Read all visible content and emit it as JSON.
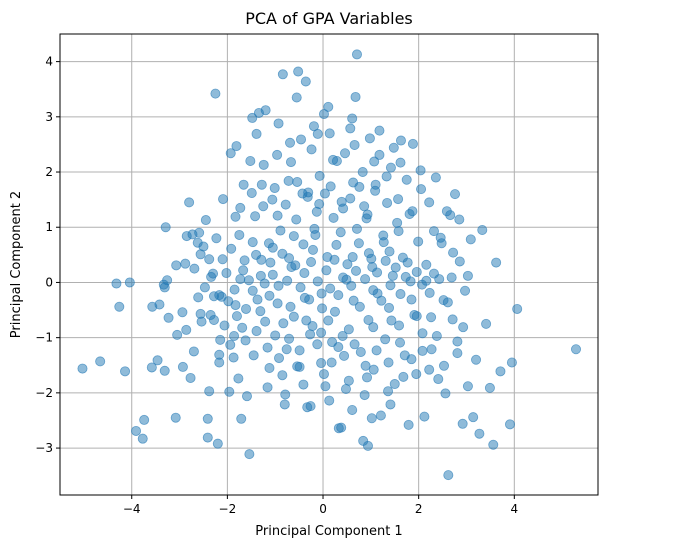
{
  "chart_data": {
    "type": "scatter",
    "title": "PCA of GPA Variables",
    "xlabel": "Principal Component 1",
    "ylabel": "Principal Component 2",
    "xlim": [
      -5.5,
      5.75
    ],
    "ylim": [
      -3.85,
      4.5
    ],
    "xticks": [
      -4,
      -2,
      0,
      2,
      4
    ],
    "yticks": [
      -3,
      -2,
      -1,
      0,
      1,
      2,
      3,
      4
    ],
    "xtick_labels": [
      "−4",
      "−2",
      "0",
      "2",
      "4"
    ],
    "ytick_labels": [
      "−3",
      "−2",
      "−1",
      "0",
      "1",
      "2",
      "3",
      "4"
    ],
    "grid": true,
    "legend": "none",
    "marker_color": "#1f77b4",
    "marker_alpha": 0.5,
    "points": [
      [
        -5.03,
        -1.56
      ],
      [
        -4.66,
        -1.43
      ],
      [
        -4.14,
        -1.61
      ],
      [
        -4.32,
        -0.02
      ],
      [
        -4.26,
        -0.44
      ],
      [
        -4.04,
        0.0
      ],
      [
        -3.91,
        -2.69
      ],
      [
        -3.77,
        -2.83
      ],
      [
        -3.74,
        -2.49
      ],
      [
        -3.58,
        -1.54
      ],
      [
        -3.57,
        -0.44
      ],
      [
        -3.42,
        -0.4
      ],
      [
        -3.31,
        -1.6
      ],
      [
        -3.31,
        -0.09
      ],
      [
        -3.33,
        -0.04
      ],
      [
        -3.23,
        -0.64
      ],
      [
        -3.29,
        1.0
      ],
      [
        -3.26,
        0.04
      ],
      [
        -3.08,
        -2.45
      ],
      [
        -3.07,
        0.31
      ],
      [
        -2.94,
        -0.54
      ],
      [
        -2.93,
        -1.53
      ],
      [
        -2.85,
        0.84
      ],
      [
        -2.8,
        1.45
      ],
      [
        -2.77,
        -1.73
      ],
      [
        -2.69,
        0.25
      ],
      [
        -2.61,
        -0.27
      ],
      [
        -2.59,
        0.9
      ],
      [
        -2.56,
        -0.57
      ],
      [
        -2.5,
        0.65
      ],
      [
        -2.41,
        -2.81
      ],
      [
        -2.41,
        -2.47
      ],
      [
        -2.38,
        -1.97
      ],
      [
        -2.35,
        -0.59
      ],
      [
        -2.38,
        0.42
      ],
      [
        -2.34,
        0.1
      ],
      [
        -2.28,
        -0.25
      ],
      [
        -2.23,
        0.8
      ],
      [
        -2.25,
        3.42
      ],
      [
        -2.2,
        -2.92
      ],
      [
        -2.17,
        -1.31
      ],
      [
        -2.15,
        -1.04
      ],
      [
        -2.12,
        -0.26
      ],
      [
        -2.1,
        0.42
      ],
      [
        -1.96,
        -1.98
      ],
      [
        -1.93,
        2.34
      ],
      [
        -1.92,
        0.61
      ],
      [
        -1.86,
        -0.97
      ],
      [
        -1.85,
        -0.13
      ],
      [
        -1.83,
        1.19
      ],
      [
        -1.81,
        2.47
      ],
      [
        -1.77,
        -1.74
      ],
      [
        -1.75,
        0.86
      ],
      [
        -1.71,
        -2.47
      ],
      [
        -1.69,
        -0.82
      ],
      [
        -1.66,
        1.77
      ],
      [
        -1.64,
        0.4
      ],
      [
        -1.59,
        -2.06
      ],
      [
        -1.54,
        -3.11
      ],
      [
        -1.52,
        2.2
      ],
      [
        -1.48,
        2.98
      ],
      [
        -1.45,
        -1.32
      ],
      [
        -1.42,
        1.2
      ],
      [
        -1.4,
        0.5
      ],
      [
        -1.34,
        3.07
      ],
      [
        -1.31,
        -0.52
      ],
      [
        -1.28,
        1.77
      ],
      [
        -1.24,
        2.13
      ],
      [
        -1.2,
        3.12
      ],
      [
        -1.16,
        -1.9
      ],
      [
        -1.12,
        -0.24
      ],
      [
        -1.1,
        0.36
      ],
      [
        -1.06,
        1.5
      ],
      [
        -1.0,
        -0.96
      ],
      [
        -0.96,
        2.31
      ],
      [
        -0.93,
        -0.06
      ],
      [
        -0.89,
        0.94
      ],
      [
        -0.84,
        3.77
      ],
      [
        -0.8,
        -2.21
      ],
      [
        -0.76,
        -1.21
      ],
      [
        -0.72,
        1.84
      ],
      [
        -0.69,
        2.53
      ],
      [
        -0.66,
        0.28
      ],
      [
        -0.61,
        -0.62
      ],
      [
        -0.56,
        1.14
      ],
      [
        -0.52,
        3.82
      ],
      [
        -0.49,
        -1.53
      ],
      [
        -0.46,
        2.59
      ],
      [
        -0.41,
        0.69
      ],
      [
        -0.38,
        -0.28
      ],
      [
        -0.36,
        3.64
      ],
      [
        -0.31,
        1.63
      ],
      [
        -0.26,
        -2.24
      ],
      [
        -0.22,
        -0.79
      ],
      [
        -0.19,
        2.83
      ],
      [
        -0.16,
        0.86
      ],
      [
        -0.12,
        -1.12
      ],
      [
        -0.07,
        1.93
      ],
      [
        -0.03,
        -0.2
      ],
      [
        0.02,
        3.05
      ],
      [
        0.05,
        -1.88
      ],
      [
        0.09,
        0.46
      ],
      [
        0.14,
        2.7
      ],
      [
        0.18,
        -1.45
      ],
      [
        0.22,
        1.17
      ],
      [
        0.25,
        -0.53
      ],
      [
        0.29,
        2.2
      ],
      [
        0.33,
        -2.64
      ],
      [
        0.37,
        0.91
      ],
      [
        0.41,
        -0.97
      ],
      [
        0.46,
        2.34
      ],
      [
        0.49,
        0.05
      ],
      [
        0.54,
        -1.78
      ],
      [
        0.57,
        1.52
      ],
      [
        0.61,
        2.97
      ],
      [
        0.64,
        -0.33
      ],
      [
        0.68,
        3.36
      ],
      [
        0.71,
        4.13
      ],
      [
        0.75,
        0.71
      ],
      [
        0.79,
        -1.26
      ],
      [
        0.83,
        2.0
      ],
      [
        0.87,
        -2.04
      ],
      [
        0.91,
        1.16
      ],
      [
        0.95,
        -0.68
      ],
      [
        0.98,
        2.61
      ],
      [
        1.03,
        0.28
      ],
      [
        1.06,
        -1.58
      ],
      [
        1.1,
        1.77
      ],
      [
        1.14,
        -0.2
      ],
      [
        1.18,
        2.31
      ],
      [
        1.21,
        -2.41
      ],
      [
        1.26,
        0.85
      ],
      [
        1.3,
        -1.03
      ],
      [
        1.34,
        1.44
      ],
      [
        1.38,
        -0.46
      ],
      [
        1.42,
        2.08
      ],
      [
        1.46,
        0.12
      ],
      [
        1.5,
        -1.84
      ],
      [
        1.55,
        1.08
      ],
      [
        1.59,
        -0.78
      ],
      [
        1.63,
        2.57
      ],
      [
        1.67,
        0.45
      ],
      [
        1.71,
        -1.32
      ],
      [
        1.75,
        1.86
      ],
      [
        1.79,
        -2.58
      ],
      [
        1.83,
        0.02
      ],
      [
        1.87,
        1.29
      ],
      [
        1.91,
        -0.59
      ],
      [
        1.95,
        -1.66
      ],
      [
        1.99,
        0.74
      ],
      [
        2.04,
        2.03
      ],
      [
        2.08,
        -0.92
      ],
      [
        2.12,
        -2.43
      ],
      [
        2.16,
        0.32
      ],
      [
        2.22,
        1.45
      ],
      [
        2.27,
        -1.21
      ],
      [
        2.32,
        0.16
      ],
      [
        2.36,
        1.9
      ],
      [
        2.41,
        -1.75
      ],
      [
        2.46,
        0.81
      ],
      [
        2.52,
        -0.32
      ],
      [
        2.56,
        -2.01
      ],
      [
        2.62,
        -3.49
      ],
      [
        2.66,
        1.22
      ],
      [
        2.71,
        -0.67
      ],
      [
        2.76,
        1.6
      ],
      [
        2.81,
        -1.28
      ],
      [
        2.86,
        0.38
      ],
      [
        2.92,
        -2.56
      ],
      [
        2.97,
        -0.15
      ],
      [
        3.03,
        -1.88
      ],
      [
        3.09,
        0.78
      ],
      [
        3.14,
        -2.44
      ],
      [
        3.2,
        -1.4
      ],
      [
        3.27,
        -2.74
      ],
      [
        3.33,
        0.95
      ],
      [
        3.41,
        -0.75
      ],
      [
        3.49,
        -1.91
      ],
      [
        3.56,
        -2.94
      ],
      [
        3.62,
        0.36
      ],
      [
        3.71,
        -1.61
      ],
      [
        3.91,
        -2.57
      ],
      [
        3.95,
        -1.45
      ],
      [
        4.06,
        -0.48
      ],
      [
        5.29,
        -1.21
      ],
      [
        -2.88,
        0.34
      ],
      [
        -2.62,
        0.72
      ],
      [
        -2.47,
        -0.09
      ],
      [
        -2.3,
        0.16
      ],
      [
        -2.02,
        0.17
      ],
      [
        -1.98,
        -0.34
      ],
      [
        -1.8,
        -0.61
      ],
      [
        -1.73,
        0.06
      ],
      [
        -1.61,
        -0.48
      ],
      [
        -1.55,
        0.04
      ],
      [
        -1.47,
        -0.15
      ],
      [
        -1.37,
        -0.31
      ],
      [
        -1.3,
        0.12
      ],
      [
        -1.22,
        -0.02
      ],
      [
        -1.13,
        0.71
      ],
      [
        -1.05,
        0.14
      ],
      [
        -0.95,
        -0.38
      ],
      [
        -0.85,
        0.52
      ],
      [
        -0.75,
        0.03
      ],
      [
        -0.68,
        -0.44
      ],
      [
        -0.58,
        0.31
      ],
      [
        -0.47,
        -0.09
      ],
      [
        -0.39,
        0.17
      ],
      [
        -0.29,
        -0.31
      ],
      [
        -0.21,
        0.59
      ],
      [
        -0.11,
        0.02
      ],
      [
        -0.02,
        -0.47
      ],
      [
        0.07,
        0.22
      ],
      [
        0.15,
        -0.11
      ],
      [
        0.24,
        0.41
      ],
      [
        0.32,
        -0.23
      ],
      [
        0.42,
        0.09
      ],
      [
        0.51,
        0.33
      ],
      [
        0.59,
        -0.06
      ],
      [
        0.69,
        0.21
      ],
      [
        0.77,
        -0.44
      ],
      [
        0.88,
        0.06
      ],
      [
        0.96,
        0.53
      ],
      [
        1.05,
        -0.14
      ],
      [
        1.13,
        0.18
      ],
      [
        1.22,
        -0.33
      ],
      [
        1.31,
        0.39
      ],
      [
        1.41,
        -0.05
      ],
      [
        1.52,
        0.27
      ],
      [
        1.62,
        -0.21
      ],
      [
        1.73,
        0.1
      ],
      [
        1.85,
        -0.31
      ],
      [
        1.96,
        0.19
      ],
      [
        2.07,
        -0.04
      ],
      [
        2.23,
        -0.19
      ],
      [
        2.43,
        0.06
      ],
      [
        2.69,
        0.09
      ],
      [
        -1.87,
        -1.36
      ],
      [
        -1.62,
        -1.05
      ],
      [
        -1.39,
        -0.88
      ],
      [
        -1.16,
        -1.18
      ],
      [
        -0.92,
        -1.37
      ],
      [
        -0.71,
        -1.02
      ],
      [
        -0.49,
        -1.23
      ],
      [
        -0.27,
        -0.94
      ],
      [
        -0.04,
        -1.46
      ],
      [
        0.19,
        -1.08
      ],
      [
        0.44,
        -1.33
      ],
      [
        0.66,
        -1.12
      ],
      [
        0.89,
        -1.51
      ],
      [
        1.12,
        -1.23
      ],
      [
        1.37,
        -1.45
      ],
      [
        1.61,
        -1.09
      ],
      [
        1.85,
        -1.39
      ],
      [
        2.08,
        -1.24
      ],
      [
        -1.73,
        1.35
      ],
      [
        -1.49,
        1.62
      ],
      [
        -1.25,
        1.38
      ],
      [
        -1.01,
        1.71
      ],
      [
        -0.78,
        1.41
      ],
      [
        -0.54,
        1.82
      ],
      [
        -0.32,
        1.55
      ],
      [
        -0.08,
        1.42
      ],
      [
        0.16,
        1.74
      ],
      [
        0.39,
        1.46
      ],
      [
        0.63,
        1.81
      ],
      [
        0.86,
        1.38
      ],
      [
        1.09,
        1.66
      ],
      [
        1.33,
        1.92
      ],
      [
        1.57,
        1.51
      ],
      [
        1.81,
        1.24
      ],
      [
        2.05,
        1.69
      ],
      [
        -0.85,
        -1.68
      ],
      [
        -0.41,
        -1.85
      ],
      [
        0.02,
        -1.66
      ],
      [
        0.48,
        -1.93
      ],
      [
        0.92,
        -1.72
      ],
      [
        1.36,
        -1.97
      ],
      [
        -0.67,
        2.18
      ],
      [
        -0.24,
        2.41
      ],
      [
        0.21,
        2.22
      ],
      [
        0.66,
        2.49
      ],
      [
        1.07,
        2.19
      ],
      [
        1.48,
        2.44
      ],
      [
        -1.39,
        2.69
      ],
      [
        -0.93,
        2.88
      ],
      [
        -0.11,
        2.69
      ],
      [
        0.57,
        2.79
      ],
      [
        1.18,
        2.75
      ],
      [
        -2.86,
        -0.86
      ],
      [
        -2.7,
        -1.25
      ],
      [
        -2.54,
        -0.71
      ],
      [
        -2.17,
        -1.45
      ],
      [
        -2.06,
        -0.78
      ],
      [
        -1.94,
        -1.13
      ],
      [
        -3.05,
        -0.95
      ],
      [
        -3.46,
        -1.41
      ],
      [
        -2.45,
        1.13
      ],
      [
        -2.73,
        0.87
      ],
      [
        -2.09,
        1.51
      ],
      [
        -2.56,
        0.51
      ],
      [
        2.26,
        -0.63
      ],
      [
        2.38,
        -0.97
      ],
      [
        2.53,
        -1.51
      ],
      [
        2.61,
        -0.36
      ],
      [
        2.81,
        -1.07
      ],
      [
        2.93,
        -0.81
      ],
      [
        2.48,
        0.71
      ],
      [
        2.59,
        1.29
      ],
      [
        2.72,
        0.54
      ],
      [
        2.85,
        1.14
      ],
      [
        3.03,
        0.12
      ],
      [
        2.32,
        0.93
      ],
      [
        -0.33,
        -2.26
      ],
      [
        0.13,
        -2.14
      ],
      [
        0.61,
        -2.31
      ],
      [
        1.02,
        -2.46
      ],
      [
        1.41,
        -2.21
      ],
      [
        -0.79,
        -2.03
      ],
      [
        0.84,
        -2.87
      ],
      [
        0.38,
        -2.63
      ],
      [
        0.94,
        -2.96
      ],
      [
        -0.55,
        3.35
      ],
      [
        0.11,
        3.18
      ],
      [
        1.62,
        2.17
      ],
      [
        1.88,
        2.51
      ],
      [
        -1.05,
        0.63
      ],
      [
        -0.61,
        0.84
      ],
      [
        0.71,
        0.97
      ],
      [
        1.27,
        0.73
      ],
      [
        -0.18,
        0.97
      ],
      [
        0.28,
        0.68
      ],
      [
        -1.47,
        0.73
      ],
      [
        1.58,
        0.93
      ],
      [
        0.54,
        -0.85
      ],
      [
        -0.35,
        -0.69
      ],
      [
        -0.83,
        -0.74
      ],
      [
        1.05,
        -0.81
      ],
      [
        -1.21,
        -0.71
      ],
      [
        0.11,
        -0.69
      ],
      [
        1.43,
        -0.69
      ],
      [
        -1.83,
        -0.41
      ],
      [
        1.96,
        -0.61
      ],
      [
        -0.13,
        1.28
      ],
      [
        0.42,
        1.34
      ],
      [
        -0.95,
        1.21
      ],
      [
        0.93,
        1.23
      ],
      [
        -0.54,
        -1.52
      ],
      [
        1.68,
        -1.71
      ],
      [
        2.22,
        -1.58
      ],
      [
        -2.28,
        -0.68
      ],
      [
        -1.12,
        -1.55
      ],
      [
        0.04,
        1.61
      ],
      [
        -0.43,
        1.61
      ],
      [
        0.76,
        1.73
      ],
      [
        -0.04,
        -0.91
      ],
      [
        0.32,
        -1.17
      ],
      [
        -0.25,
        0.37
      ],
      [
        0.62,
        0.46
      ],
      [
        -0.71,
        0.44
      ],
      [
        1.01,
        0.43
      ],
      [
        -1.29,
        0.41
      ],
      [
        1.39,
        0.56
      ],
      [
        -1.67,
        0.22
      ],
      [
        1.77,
        0.36
      ],
      [
        -2.17,
        -0.23
      ],
      [
        2.16,
        0.03
      ]
    ]
  }
}
